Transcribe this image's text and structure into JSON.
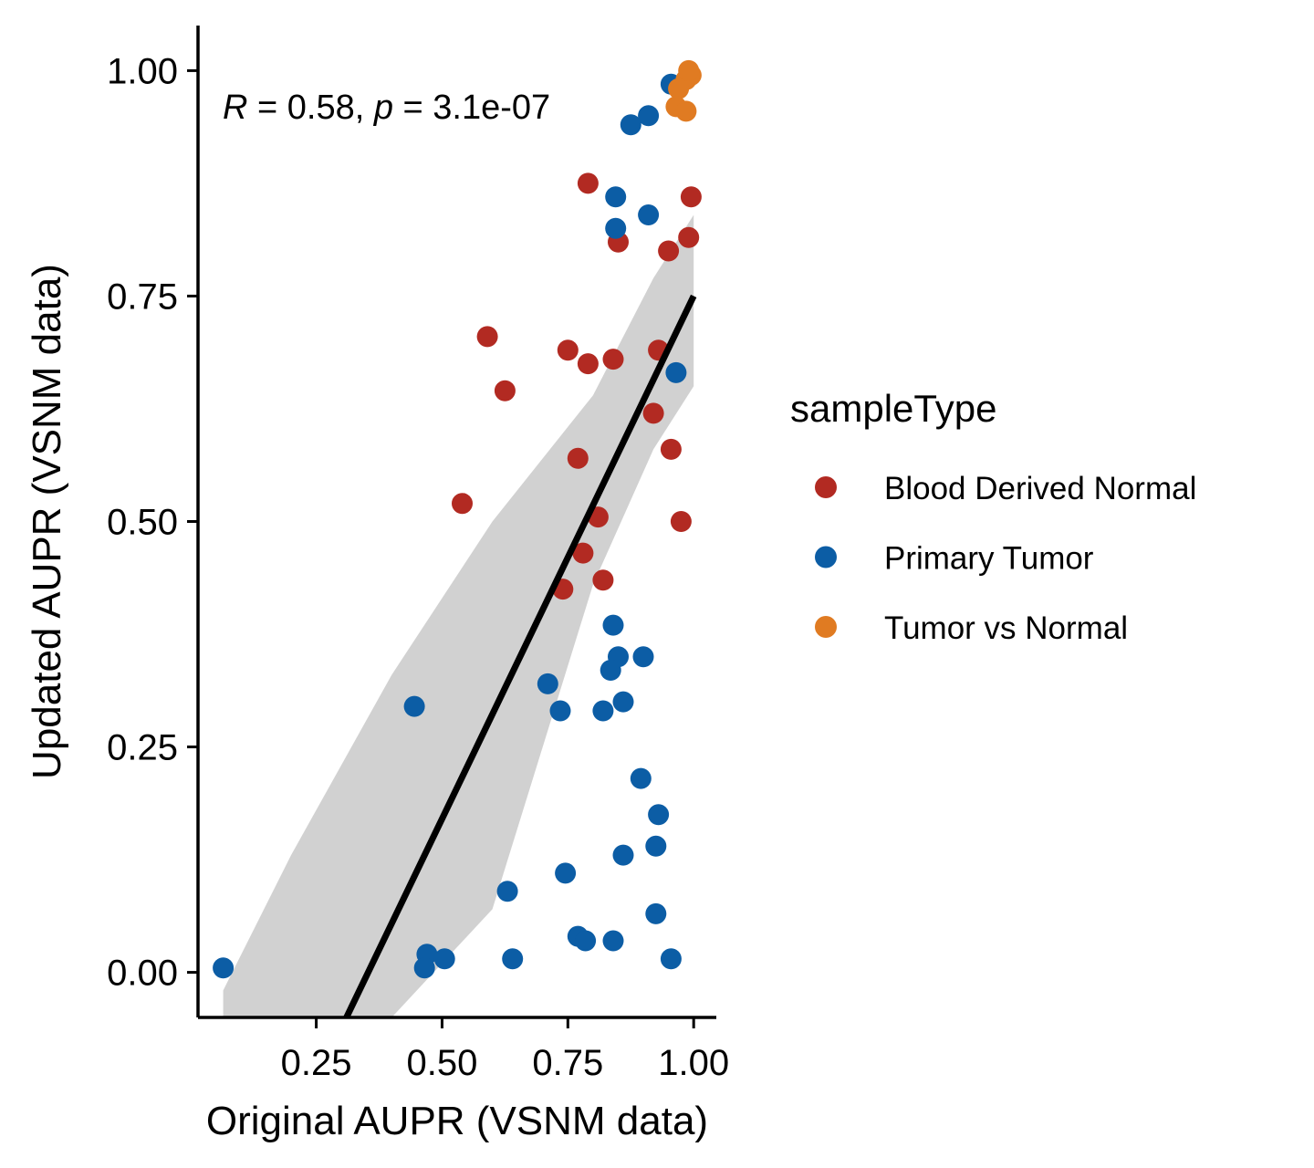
{
  "chart_data": {
    "type": "scatter",
    "xlabel": "Original AUPR (VSNM data)",
    "ylabel": "Updated AUPR (VSNM data)",
    "xlim": [
      0.015,
      1.045
    ],
    "ylim": [
      -0.05,
      1.05
    ],
    "x_ticks": [
      "0.25",
      "0.50",
      "0.75",
      "1.00"
    ],
    "x_tick_values": [
      0.25,
      0.5,
      0.75,
      1.0
    ],
    "y_ticks": [
      "0.00",
      "0.25",
      "0.50",
      "0.75",
      "1.00"
    ],
    "y_tick_values": [
      0.0,
      0.25,
      0.5,
      0.75,
      1.0
    ],
    "grid": false,
    "legend_position": "right",
    "annotation": {
      "r_symbol": "R",
      "r_text": " = 0.58, ",
      "p_symbol": "p",
      "p_text": " = 3.1e-07"
    },
    "regression": {
      "x": [
        0.31,
        1.0
      ],
      "y": [
        -0.05,
        0.75
      ],
      "ci_x": [
        0.065,
        0.2,
        0.4,
        0.6,
        0.8,
        0.92,
        1.0
      ],
      "ci_lower": [
        -0.05,
        -0.05,
        -0.05,
        0.07,
        0.43,
        0.58,
        0.65
      ],
      "ci_upper": [
        -0.02,
        0.13,
        0.33,
        0.5,
        0.64,
        0.77,
        0.84
      ],
      "line_color": "#000000",
      "band_color": "#cccccc"
    },
    "legend": {
      "title": "sampleType"
    },
    "series": [
      {
        "name": "Blood Derived Normal",
        "color": "#B22A22",
        "x": [
          0.79,
          0.85,
          0.95,
          0.99,
          0.995,
          0.59,
          0.75,
          0.79,
          0.84,
          0.93,
          0.625,
          0.92,
          0.77,
          0.955,
          0.54,
          0.81,
          0.975,
          0.78,
          0.74,
          0.82
        ],
        "y": [
          0.875,
          0.81,
          0.8,
          0.815,
          0.86,
          0.705,
          0.69,
          0.675,
          0.68,
          0.69,
          0.645,
          0.62,
          0.57,
          0.58,
          0.52,
          0.505,
          0.5,
          0.465,
          0.425,
          0.435
        ]
      },
      {
        "name": "Primary Tumor",
        "color": "#0C5DA5",
        "x": [
          0.955,
          0.875,
          0.91,
          0.845,
          0.845,
          0.91,
          0.965,
          0.84,
          0.85,
          0.9,
          0.71,
          0.835,
          0.735,
          0.82,
          0.86,
          0.445,
          0.895,
          0.93,
          0.925,
          0.86,
          0.745,
          0.63,
          0.925,
          0.77,
          0.785,
          0.84,
          0.47,
          0.505,
          0.64,
          0.955,
          0.065,
          0.465
        ],
        "y": [
          0.985,
          0.94,
          0.95,
          0.86,
          0.825,
          0.84,
          0.665,
          0.385,
          0.35,
          0.35,
          0.32,
          0.335,
          0.29,
          0.29,
          0.3,
          0.295,
          0.215,
          0.175,
          0.14,
          0.13,
          0.11,
          0.09,
          0.065,
          0.04,
          0.035,
          0.035,
          0.02,
          0.015,
          0.015,
          0.015,
          0.005,
          0.005
        ]
      },
      {
        "name": "Tumor vs Normal",
        "color": "#E07B22",
        "x": [
          0.985,
          0.995,
          0.99,
          0.97,
          0.965,
          0.985
        ],
        "y": [
          0.99,
          0.995,
          1.0,
          0.98,
          0.96,
          0.955
        ]
      }
    ]
  }
}
